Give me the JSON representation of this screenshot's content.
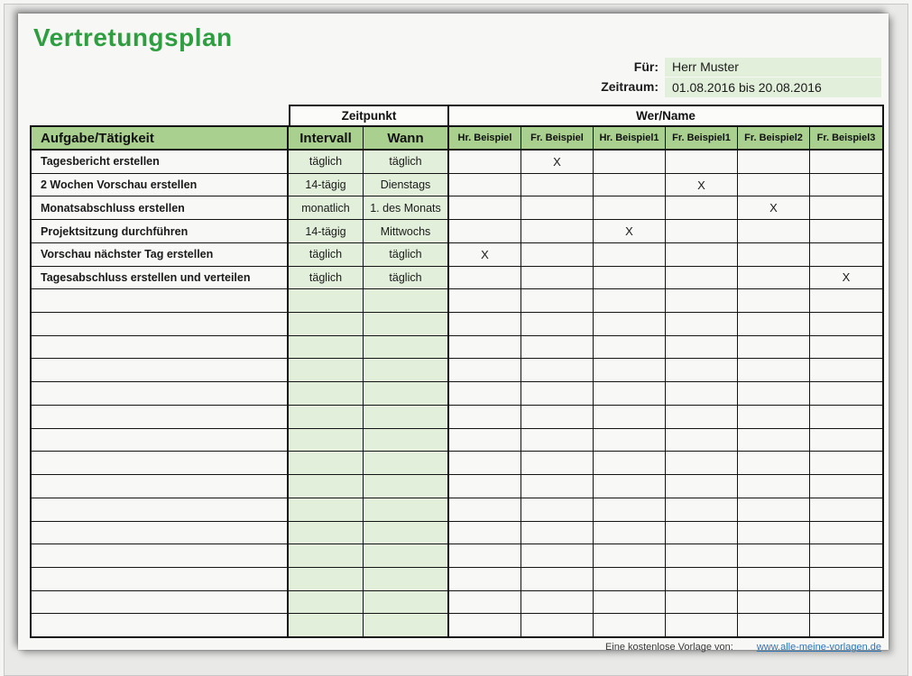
{
  "header": {
    "title": "Vertretungsplan",
    "fuer_label": "Für:",
    "fuer_value": "Herr Muster",
    "zeitraum_label": "Zeitraum:",
    "zeitraum_value": "01.08.2016 bis 20.08.2016"
  },
  "table": {
    "group_headers": {
      "zeitpunkt": "Zeitpunkt",
      "wer_name": "Wer/Name"
    },
    "columns": {
      "aufgabe": "Aufgabe/Tätigkeit",
      "intervall": "Intervall",
      "wann": "Wann",
      "names": [
        "Hr. Beispiel",
        "Fr. Beispiel",
        "Hr. Beispiel1",
        "Fr. Beispiel1",
        "Fr. Beispiel2",
        "Fr. Beispiel3"
      ]
    },
    "mark_char": "X",
    "rows": [
      {
        "aufgabe": "Tagesbericht erstellen",
        "intervall": "täglich",
        "wann": "täglich",
        "marks": [
          0,
          1,
          0,
          0,
          0,
          0
        ]
      },
      {
        "aufgabe": "2 Wochen Vorschau erstellen",
        "intervall": "14-tägig",
        "wann": "Dienstags",
        "marks": [
          0,
          0,
          0,
          1,
          0,
          0
        ]
      },
      {
        "aufgabe": "Monatsabschluss erstellen",
        "intervall": "monatlich",
        "wann": "1. des Monats",
        "marks": [
          0,
          0,
          0,
          0,
          1,
          0
        ]
      },
      {
        "aufgabe": "Projektsitzung durchführen",
        "intervall": "14-tägig",
        "wann": "Mittwochs",
        "marks": [
          0,
          0,
          1,
          0,
          0,
          0
        ]
      },
      {
        "aufgabe": "Vorschau nächster Tag erstellen",
        "intervall": "täglich",
        "wann": "täglich",
        "marks": [
          1,
          0,
          0,
          0,
          0,
          0
        ]
      },
      {
        "aufgabe": "Tagesabschluss erstellen und verteilen",
        "intervall": "täglich",
        "wann": "täglich",
        "marks": [
          0,
          0,
          0,
          0,
          0,
          1
        ]
      }
    ],
    "empty_row_count": 15
  },
  "footer": {
    "credit_label": "Eine kostenlose Vorlage von:",
    "link_text": "www.alle-meine-vorlagen.de"
  },
  "colors": {
    "title_green": "#2f9e41",
    "header_green": "#a9d08e",
    "light_green": "#e2efda",
    "link_blue": "#2e74b5"
  }
}
